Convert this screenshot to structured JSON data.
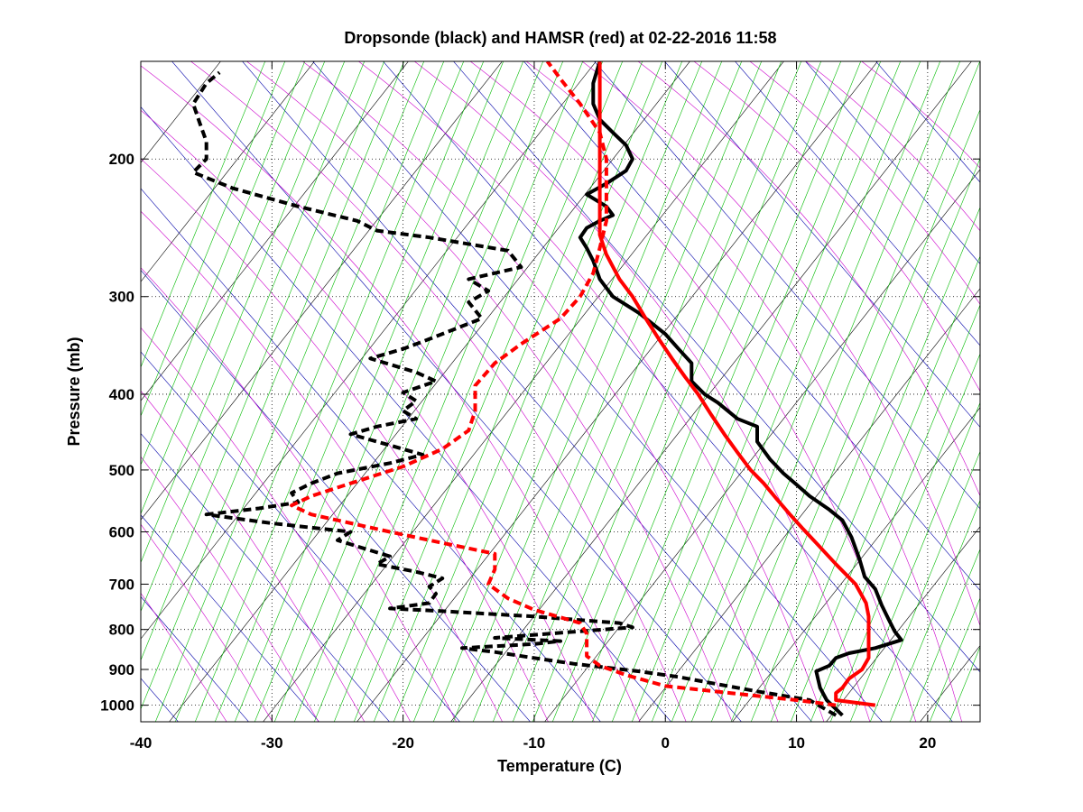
{
  "chart_data": {
    "type": "line",
    "title": "Dropsonde (black) and HAMSR (red) at 02-22-2016 11:58",
    "xlabel": "Temperature (C)",
    "ylabel": "Pressure (mb)",
    "xlim": [
      -40,
      24
    ],
    "ylim": [
      1050,
      150
    ],
    "y_scale": "log",
    "grid": "dotted",
    "x_ticks": [
      -40,
      -30,
      -20,
      -10,
      0,
      10,
      20
    ],
    "x_tick_labels": [
      "-40",
      "-30",
      "-20",
      "-10",
      "0",
      "10",
      "20"
    ],
    "y_ticks": [
      200,
      300,
      400,
      500,
      600,
      700,
      800,
      900,
      1000
    ],
    "y_tick_labels": [
      "200",
      "300",
      "400",
      "500",
      "600",
      "700",
      "800",
      "900",
      "1000"
    ],
    "background_lines": {
      "isotherms_color": "#000000",
      "dry_adiabats_color": "#0000aa",
      "moist_adiabats_color": "#cc00cc",
      "mixing_ratio_color": "#00bb00"
    },
    "series": [
      {
        "color": "#000000",
        "style": "solid",
        "kind": "temperature",
        "points": [
          [
            13.5,
            1030
          ],
          [
            12.3,
            985
          ],
          [
            11.8,
            950
          ],
          [
            11.5,
            905
          ],
          [
            12.5,
            890
          ],
          [
            13,
            870
          ],
          [
            14,
            858
          ],
          [
            16,
            845
          ],
          [
            18,
            825
          ],
          [
            17.5,
            805
          ],
          [
            17,
            775
          ],
          [
            16.5,
            745
          ],
          [
            16,
            710
          ],
          [
            15.2,
            685
          ],
          [
            14.8,
            650
          ],
          [
            14.5,
            630
          ],
          [
            14.2,
            610
          ],
          [
            13.5,
            580
          ],
          [
            12.5,
            562
          ],
          [
            11,
            540
          ],
          [
            10,
            522
          ],
          [
            9,
            505
          ],
          [
            8,
            485
          ],
          [
            7,
            460
          ],
          [
            7,
            440
          ],
          [
            5.5,
            430
          ],
          [
            4,
            410
          ],
          [
            3,
            400
          ],
          [
            2,
            385
          ],
          [
            2,
            365
          ],
          [
            1,
            350
          ],
          [
            0,
            335
          ],
          [
            -2,
            315
          ],
          [
            -4,
            300
          ],
          [
            -5,
            285
          ],
          [
            -5.5,
            270
          ],
          [
            -6,
            260
          ],
          [
            -6.5,
            252
          ],
          [
            -6,
            245
          ],
          [
            -5,
            240
          ],
          [
            -4,
            236
          ],
          [
            -4.5,
            230
          ],
          [
            -6,
            222
          ],
          [
            -4.5,
            215
          ],
          [
            -3,
            207
          ],
          [
            -2.5,
            200
          ],
          [
            -3,
            192
          ],
          [
            -4,
            185
          ],
          [
            -5,
            178
          ],
          [
            -5.5,
            170
          ],
          [
            -5.5,
            160
          ],
          [
            -5,
            150
          ]
        ]
      },
      {
        "color": "#000000",
        "style": "dashed",
        "kind": "dewpoint",
        "points": [
          [
            13,
            1030
          ],
          [
            11,
            985
          ],
          [
            7,
            960
          ],
          [
            4,
            940
          ],
          [
            1,
            920
          ],
          [
            -2,
            905
          ],
          [
            -4.5,
            895
          ],
          [
            -7,
            885
          ],
          [
            -10,
            870
          ],
          [
            -13,
            855
          ],
          [
            -15.5,
            845
          ],
          [
            -10,
            835
          ],
          [
            -8,
            828
          ],
          [
            -13,
            820
          ],
          [
            -8,
            808
          ],
          [
            -2.5,
            795
          ],
          [
            -3.5,
            785
          ],
          [
            -10,
            770
          ],
          [
            -17,
            758
          ],
          [
            -21,
            752
          ],
          [
            -18,
            740
          ],
          [
            -17.5,
            720
          ],
          [
            -18,
            705
          ],
          [
            -17,
            688
          ],
          [
            -19,
            675
          ],
          [
            -22,
            660
          ],
          [
            -21,
            645
          ],
          [
            -23,
            630
          ],
          [
            -25,
            615
          ],
          [
            -24,
            600
          ],
          [
            -30,
            585
          ],
          [
            -35,
            570
          ],
          [
            -31,
            560
          ],
          [
            -28,
            550
          ],
          [
            -28.5,
            535
          ],
          [
            -27,
            520
          ],
          [
            -25,
            505
          ],
          [
            -21,
            490
          ],
          [
            -18.5,
            478
          ],
          [
            -21,
            465
          ],
          [
            -24,
            450
          ],
          [
            -22,
            440
          ],
          [
            -19,
            430
          ],
          [
            -20,
            420
          ],
          [
            -19,
            408
          ],
          [
            -20,
            398
          ],
          [
            -17.5,
            385
          ],
          [
            -19,
            375
          ],
          [
            -22.5,
            360
          ],
          [
            -20,
            350
          ],
          [
            -18,
            340
          ],
          [
            -14,
            320
          ],
          [
            -15,
            305
          ],
          [
            -13.5,
            295
          ],
          [
            -15,
            285
          ],
          [
            -11,
            275
          ],
          [
            -12,
            262
          ],
          [
            -18,
            252
          ],
          [
            -22,
            247
          ],
          [
            -23.5,
            240
          ],
          [
            -28,
            230
          ],
          [
            -33,
            218
          ],
          [
            -36,
            208
          ],
          [
            -35,
            200
          ],
          [
            -35,
            190
          ],
          [
            -35.5,
            180
          ],
          [
            -36,
            170
          ],
          [
            -35,
            160
          ],
          [
            -34,
            155
          ]
        ]
      },
      {
        "color": "#ff0000",
        "style": "solid",
        "kind": "temperature",
        "points": [
          [
            16,
            1000
          ],
          [
            13,
            985
          ],
          [
            13,
            965
          ],
          [
            13.5,
            950
          ],
          [
            14,
            925
          ],
          [
            15,
            900
          ],
          [
            15.5,
            870
          ],
          [
            15.5,
            835
          ],
          [
            15.5,
            800
          ],
          [
            15.5,
            770
          ],
          [
            15.3,
            740
          ],
          [
            14.5,
            700
          ],
          [
            13,
            660
          ],
          [
            11.5,
            620
          ],
          [
            10.5,
            595
          ],
          [
            9.5,
            570
          ],
          [
            8.5,
            545
          ],
          [
            7.5,
            520
          ],
          [
            6.5,
            500
          ],
          [
            5.5,
            475
          ],
          [
            4.5,
            450
          ],
          [
            3.5,
            425
          ],
          [
            2.5,
            400
          ],
          [
            1.5,
            380
          ],
          [
            0.5,
            360
          ],
          [
            -0.5,
            340
          ],
          [
            -1.5,
            320
          ],
          [
            -2.5,
            300
          ],
          [
            -3.5,
            285
          ],
          [
            -4.5,
            265
          ],
          [
            -5,
            250
          ],
          [
            -5,
            230
          ],
          [
            -5,
            210
          ],
          [
            -5,
            190
          ],
          [
            -5,
            170
          ],
          [
            -5,
            150
          ]
        ]
      },
      {
        "color": "#ff0000",
        "style": "dashed",
        "kind": "dewpoint",
        "points": [
          [
            13,
            1000
          ],
          [
            10,
            985
          ],
          [
            5,
            965
          ],
          [
            0,
            945
          ],
          [
            -3,
            915
          ],
          [
            -5,
            890
          ],
          [
            -6,
            865
          ],
          [
            -6,
            840
          ],
          [
            -6,
            810
          ],
          [
            -6.5,
            785
          ],
          [
            -10,
            755
          ],
          [
            -12,
            730
          ],
          [
            -13.5,
            700
          ],
          [
            -13,
            670
          ],
          [
            -13,
            640
          ],
          [
            -17,
            620
          ],
          [
            -21,
            600
          ],
          [
            -27,
            570
          ],
          [
            -28.5,
            555
          ],
          [
            -27,
            540
          ],
          [
            -24,
            520
          ],
          [
            -20,
            495
          ],
          [
            -17,
            470
          ],
          [
            -15,
            445
          ],
          [
            -14.5,
            420
          ],
          [
            -14.5,
            390
          ],
          [
            -13,
            365
          ],
          [
            -11,
            345
          ],
          [
            -8,
            320
          ],
          [
            -6.5,
            300
          ],
          [
            -5.5,
            280
          ],
          [
            -5,
            260
          ],
          [
            -4.5,
            240
          ],
          [
            -4.5,
            220
          ],
          [
            -4.5,
            200
          ],
          [
            -5,
            185
          ],
          [
            -6.5,
            170
          ],
          [
            -8,
            158
          ],
          [
            -9,
            150
          ]
        ]
      }
    ]
  }
}
